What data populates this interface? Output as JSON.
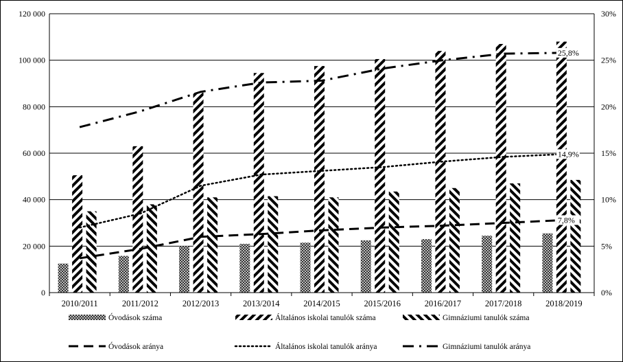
{
  "chart_data": {
    "type": "bar",
    "title": "",
    "categories": [
      "2010/2011",
      "2011/2012",
      "2012/2013",
      "2013/2014",
      "2014/2015",
      "2015/2016",
      "2016/2017",
      "2017/2018",
      "2018/2019"
    ],
    "y_left": {
      "range": [
        0,
        120000
      ],
      "ticks": [
        0,
        20000,
        40000,
        60000,
        80000,
        100000,
        120000
      ],
      "tick_labels": [
        "0",
        "20 000",
        "40 000",
        "60 000",
        "80 000",
        "100 000",
        "120 000"
      ]
    },
    "y_right": {
      "range": [
        0,
        30
      ],
      "ticks": [
        0,
        5,
        10,
        15,
        20,
        25,
        30
      ],
      "tick_labels": [
        "0%",
        "5%",
        "10%",
        "15%",
        "20%",
        "25%",
        "30%"
      ]
    },
    "grid": true,
    "legend_position": "bottom",
    "bar_series": [
      {
        "name": "Óvodások száma",
        "pattern": "crosshatch",
        "values": [
          12500,
          15800,
          20000,
          21000,
          21500,
          22500,
          23000,
          24500,
          25500
        ]
      },
      {
        "name": "Általános iskolai tanulók száma",
        "pattern": "backslash",
        "values": [
          50500,
          63000,
          86000,
          94500,
          97500,
          100500,
          104000,
          107000,
          108000
        ]
      },
      {
        "name": "Gimnáziumi tanulók száma",
        "pattern": "slash",
        "values": [
          35000,
          38000,
          41000,
          41500,
          41000,
          43500,
          45000,
          47000,
          48500
        ]
      }
    ],
    "line_series": [
      {
        "name": "Óvodások aránya",
        "style": "dash",
        "values": [
          3.7,
          4.7,
          6.0,
          6.3,
          6.7,
          7.0,
          7.2,
          7.5,
          7.8
        ],
        "end_label": "7,8%"
      },
      {
        "name": "Általános iskolai tanulók aránya",
        "style": "dot",
        "values": [
          7.0,
          8.5,
          11.5,
          12.7,
          13.1,
          13.5,
          14.1,
          14.6,
          14.9
        ],
        "end_label": "14,9%"
      },
      {
        "name": "Gimnáziumi tanulók aránya",
        "style": "dashdot",
        "values": [
          17.8,
          19.5,
          21.6,
          22.6,
          22.8,
          24.1,
          25.0,
          25.7,
          25.8
        ],
        "end_label": "25,8%"
      }
    ]
  }
}
